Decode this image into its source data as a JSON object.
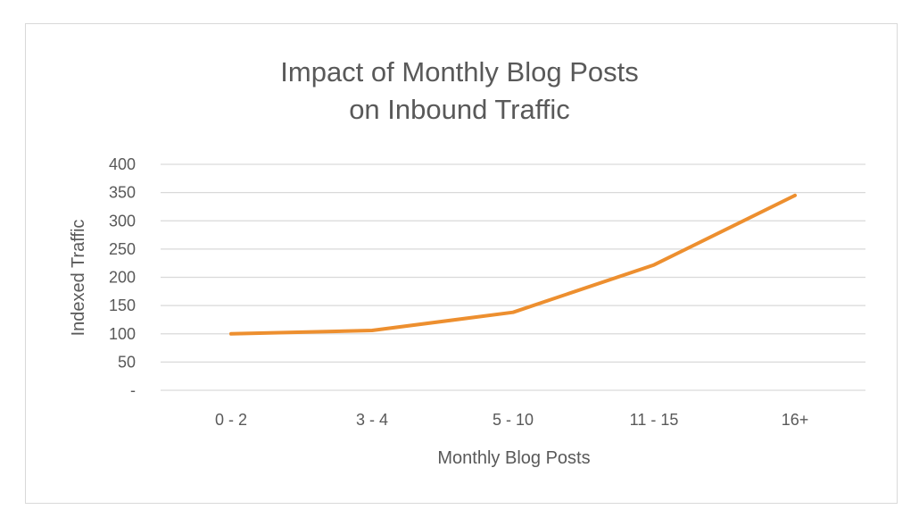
{
  "chart_data": {
    "type": "line",
    "title": [
      "Impact of Monthly Blog Posts",
      "on Inbound Traffic"
    ],
    "xlabel": "Monthly Blog Posts",
    "ylabel": "Indexed Traffic",
    "categories": [
      "0 - 2",
      "3 - 4",
      "5 - 10",
      "11 - 15",
      "16+"
    ],
    "series": [
      {
        "values": [
          100,
          106,
          138,
          222,
          345
        ],
        "color": "#ed8f2f"
      }
    ],
    "ylim": [
      0,
      400
    ],
    "yticks": [
      {
        "value": 400,
        "label": "400"
      },
      {
        "value": 350,
        "label": "350"
      },
      {
        "value": 300,
        "label": "300"
      },
      {
        "value": 250,
        "label": "250"
      },
      {
        "value": 200,
        "label": "200"
      },
      {
        "value": 150,
        "label": "150"
      },
      {
        "value": 100,
        "label": "100"
      },
      {
        "value": 50,
        "label": "50"
      },
      {
        "value": 0,
        "label": "-"
      }
    ],
    "grid": true,
    "legend": "none"
  },
  "colors": {
    "gridline": "#d9d9d9",
    "text": "#595959",
    "line": "#ed8f2f"
  }
}
